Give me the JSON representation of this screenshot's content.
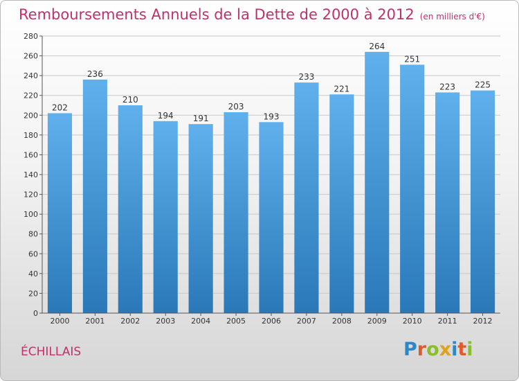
{
  "chart_data": {
    "type": "bar",
    "title": "Remboursements Annuels de la Dette de 2000 à 2012",
    "subtitle": "(en milliers d'€)",
    "categories": [
      "2000",
      "2001",
      "2002",
      "2003",
      "2004",
      "2005",
      "2006",
      "2007",
      "2008",
      "2009",
      "2010",
      "2011",
      "2012"
    ],
    "values": [
      202,
      236,
      210,
      194,
      191,
      203,
      193,
      233,
      221,
      264,
      251,
      223,
      225
    ],
    "ylim": [
      0,
      280
    ],
    "yticks": [
      0,
      20,
      40,
      60,
      80,
      100,
      120,
      140,
      160,
      180,
      200,
      220,
      240,
      260,
      280
    ],
    "grid": true,
    "xlabel": "",
    "ylabel": ""
  },
  "colors": {
    "bar_top": "#5fb0ec",
    "bar_bottom": "#2a78b8",
    "title": "#c0306a",
    "grid": "#c8c8c8"
  },
  "footer": {
    "commune": "ÉCHILLAIS",
    "logo_text": "Proxiti"
  }
}
